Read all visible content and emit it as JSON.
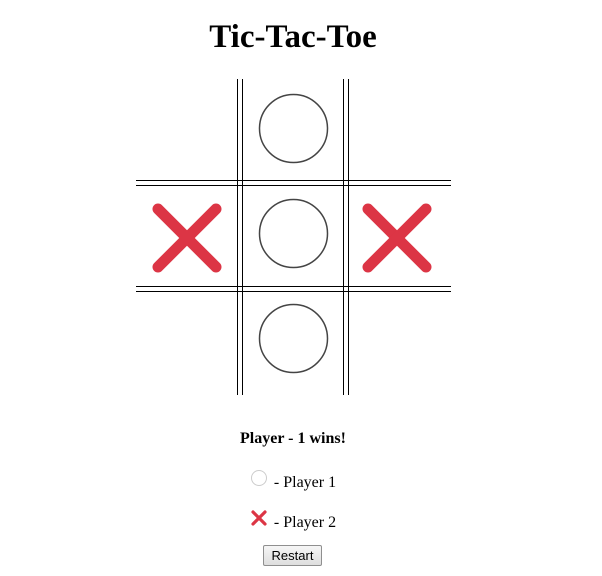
{
  "title": "Tic-Tac-Toe",
  "board": {
    "cells": [
      "",
      "O",
      "",
      "X",
      "O",
      "X",
      "",
      "O",
      ""
    ]
  },
  "status": "Player - 1 wins!",
  "legend": {
    "player1": {
      "label": "- Player 1",
      "icon": "circle-icon"
    },
    "player2": {
      "label": "- Player 2",
      "icon": "cross-icon"
    }
  },
  "restart_label": "Restart",
  "colors": {
    "cross": "#dc3545",
    "circle": "#444444",
    "legend_circle": "#cccccc"
  }
}
